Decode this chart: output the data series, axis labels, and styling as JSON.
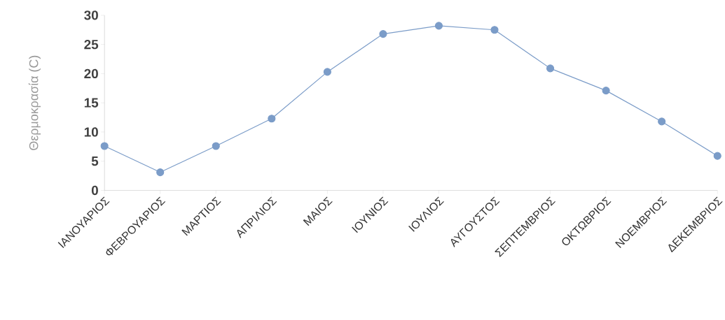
{
  "chart_data": {
    "type": "line",
    "ylabel": "Θερμοκρασία (C)",
    "categories": [
      "ΙΑΝΟΥΑΡΙΟΣ",
      "ΦΕΒΡΟΥΑΡΙΟΣ",
      "ΜΑΡΤΙΟΣ",
      "ΑΠΡΙΛΙΟΣ",
      "ΜΑΙΟΣ",
      "ΙΟΥΝΙΟΣ",
      "ΙΟΥΛΙΟΣ",
      "ΑΥΓΟΥΣΤΟΣ",
      "ΣΕΠΤΕΜΒΡΙΟΣ",
      "ΟΚΤΩΒΡΙΟΣ",
      "ΝΟΕΜΒΡΙΟΣ",
      "ΔΕΚΕΜΒΡΙΟΣ"
    ],
    "values": [
      7.6,
      3.1,
      7.6,
      12.3,
      20.3,
      26.8,
      28.2,
      27.5,
      20.9,
      17.1,
      11.8,
      5.9
    ],
    "color": "#7b9cc8",
    "ylim": [
      0,
      30
    ],
    "yticks": [
      0,
      5,
      10,
      15,
      20,
      25,
      30
    ],
    "grid": false,
    "marker": "circle",
    "line_style": "solid"
  }
}
